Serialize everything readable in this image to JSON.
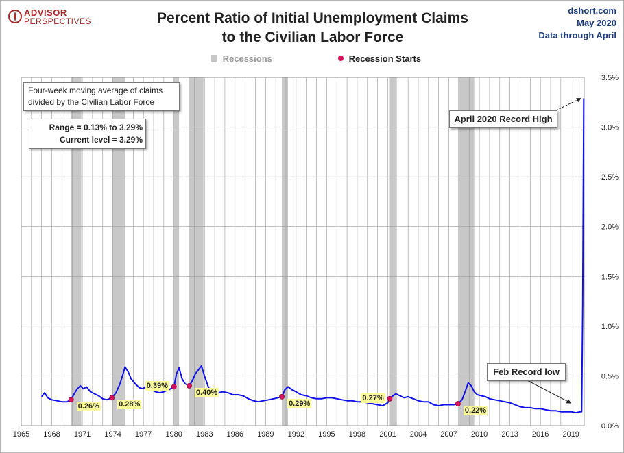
{
  "header": {
    "brand_line1": "ADVISOR",
    "brand_line2": "PERSPECTIVES",
    "title_line1": "Percent Ratio of Initial Unemployment Claims",
    "title_line2": "to the Civilian Labor Force",
    "source_line1": "dshort.com",
    "source_line2": "May 2020",
    "source_line3": "Data through April"
  },
  "legend": {
    "recessions": "Recessions",
    "recession_starts": "Recession Starts"
  },
  "annotations": {
    "note_line1": "Four-week moving average of claims",
    "note_line2": "divided by the Civilian Labor Force",
    "range_line1": "Range = 0.13% to 3.29%",
    "range_line2": "Current level = 3.29%",
    "record_high": "April 2020  Record High",
    "record_low": "Feb Record low"
  },
  "colors": {
    "line": "#1010e8",
    "recession_band": "#c8c8c8",
    "recession_marker": "#d6105a",
    "label_bg": "#fafa9a"
  },
  "chart_data": {
    "type": "line",
    "x_unit": "year",
    "y_unit": "percent",
    "xlim": [
      1965,
      2020.3
    ],
    "ylim": [
      0,
      3.5
    ],
    "x_ticks": [
      1965,
      1968,
      1971,
      1974,
      1977,
      1980,
      1983,
      1986,
      1989,
      1992,
      1995,
      1998,
      2001,
      2004,
      2007,
      2010,
      2013,
      2016,
      2019
    ],
    "x_tick_labels": [
      "1965",
      "1968",
      "1971",
      "1974",
      "1977",
      "1980",
      "1983",
      "1986",
      "1989",
      "1992",
      "1995",
      "1998",
      "2001",
      "2004",
      "2007",
      "2010",
      "2013",
      "2016",
      "2019"
    ],
    "y_ticks": [
      0,
      0.5,
      1.0,
      1.5,
      2.0,
      2.5,
      3.0,
      3.5
    ],
    "y_tick_labels": [
      "0.0%",
      "0.5%",
      "1.0%",
      "1.5%",
      "2.0%",
      "2.5%",
      "3.0%",
      "3.5%"
    ],
    "grid": true,
    "legend_position": "top-center",
    "recessions": [
      [
        1969.9,
        1970.9
      ],
      [
        1973.9,
        1975.2
      ],
      [
        1980.0,
        1980.5
      ],
      [
        1981.5,
        1982.9
      ],
      [
        1990.6,
        1991.2
      ],
      [
        2001.2,
        2001.9
      ],
      [
        2007.9,
        2009.5
      ]
    ],
    "recession_starts": [
      {
        "x": 1969.9,
        "y": 0.26,
        "label": "0.26%"
      },
      {
        "x": 1973.9,
        "y": 0.28,
        "label": "0.28%"
      },
      {
        "x": 1980.0,
        "y": 0.39,
        "label": "0.39%"
      },
      {
        "x": 1981.5,
        "y": 0.4,
        "label": "0.40%"
      },
      {
        "x": 1990.6,
        "y": 0.29,
        "label": "0.29%"
      },
      {
        "x": 2001.2,
        "y": 0.27,
        "label": "0.27%"
      },
      {
        "x": 2007.9,
        "y": 0.22,
        "label": "0.22%"
      }
    ],
    "series": [
      {
        "x": [
          1967.0,
          1967.3,
          1967.6,
          1968.0,
          1968.5,
          1969.0,
          1969.5,
          1969.9,
          1970.2,
          1970.5,
          1970.8,
          1971.1,
          1971.4,
          1971.8,
          1972.2,
          1972.6,
          1973.0,
          1973.4,
          1973.9,
          1974.3,
          1974.7,
          1975.0,
          1975.2,
          1975.5,
          1975.8,
          1976.2,
          1976.6,
          1977.0,
          1977.4,
          1977.8,
          1978.2,
          1978.6,
          1979.0,
          1979.5,
          1980.0,
          1980.25,
          1980.5,
          1980.8,
          1981.1,
          1981.5,
          1981.8,
          1982.1,
          1982.4,
          1982.7,
          1983.0,
          1983.4,
          1983.8,
          1984.3,
          1984.8,
          1985.3,
          1985.8,
          1986.3,
          1986.8,
          1987.3,
          1987.8,
          1988.3,
          1988.8,
          1989.3,
          1989.8,
          1990.2,
          1990.6,
          1990.9,
          1991.2,
          1991.6,
          1992.0,
          1992.5,
          1993.0,
          1993.5,
          1994.0,
          1994.5,
          1995.0,
          1995.5,
          1996.0,
          1996.5,
          1997.0,
          1997.5,
          1998.0,
          1998.5,
          1999.0,
          1999.5,
          2000.0,
          2000.5,
          2001.0,
          2001.2,
          2001.5,
          2001.8,
          2002.2,
          2002.6,
          2003.0,
          2003.5,
          2004.0,
          2004.5,
          2005.0,
          2005.5,
          2006.0,
          2006.5,
          2007.0,
          2007.5,
          2007.9,
          2008.3,
          2008.6,
          2008.9,
          2009.2,
          2009.5,
          2009.8,
          2010.2,
          2010.6,
          2011.0,
          2011.5,
          2012.0,
          2012.5,
          2013.0,
          2013.5,
          2014.0,
          2014.5,
          2015.0,
          2015.5,
          2016.0,
          2016.5,
          2017.0,
          2017.5,
          2018.0,
          2018.5,
          2019.0,
          2019.5,
          2019.9,
          2020.05,
          2020.15,
          2020.25
        ],
        "y": [
          0.29,
          0.33,
          0.28,
          0.26,
          0.25,
          0.24,
          0.24,
          0.26,
          0.32,
          0.37,
          0.4,
          0.37,
          0.39,
          0.34,
          0.32,
          0.3,
          0.27,
          0.26,
          0.28,
          0.33,
          0.42,
          0.52,
          0.59,
          0.54,
          0.47,
          0.42,
          0.38,
          0.37,
          0.42,
          0.36,
          0.34,
          0.33,
          0.34,
          0.36,
          0.39,
          0.52,
          0.58,
          0.47,
          0.42,
          0.4,
          0.45,
          0.52,
          0.56,
          0.6,
          0.5,
          0.38,
          0.35,
          0.33,
          0.34,
          0.33,
          0.31,
          0.31,
          0.3,
          0.27,
          0.25,
          0.24,
          0.25,
          0.26,
          0.27,
          0.28,
          0.29,
          0.36,
          0.39,
          0.36,
          0.34,
          0.31,
          0.3,
          0.28,
          0.27,
          0.27,
          0.28,
          0.28,
          0.27,
          0.26,
          0.25,
          0.25,
          0.24,
          0.24,
          0.23,
          0.22,
          0.21,
          0.2,
          0.23,
          0.27,
          0.3,
          0.32,
          0.3,
          0.28,
          0.29,
          0.27,
          0.25,
          0.24,
          0.24,
          0.21,
          0.2,
          0.21,
          0.21,
          0.21,
          0.22,
          0.26,
          0.34,
          0.43,
          0.4,
          0.34,
          0.31,
          0.3,
          0.29,
          0.27,
          0.26,
          0.25,
          0.24,
          0.23,
          0.21,
          0.19,
          0.18,
          0.18,
          0.17,
          0.17,
          0.16,
          0.15,
          0.15,
          0.14,
          0.14,
          0.14,
          0.13,
          0.14,
          0.14,
          1.2,
          3.29
        ]
      }
    ]
  }
}
